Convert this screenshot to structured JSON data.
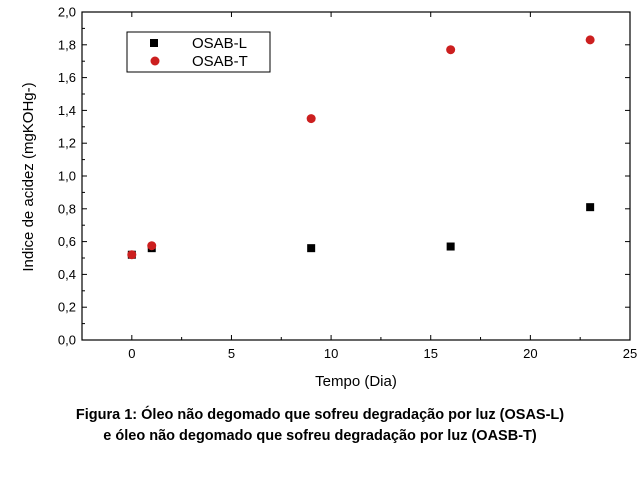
{
  "chart_data": {
    "type": "scatter",
    "xlabel": "Tempo (Dia)",
    "ylabel": "Indice de acidez (mgKOHg-)",
    "xlim": [
      -2.5,
      25
    ],
    "ylim": [
      0,
      2.0
    ],
    "x_ticks": [
      "0",
      "5",
      "10",
      "15",
      "20",
      "25"
    ],
    "y_ticks": [
      "0,0",
      "0,2",
      "0,4",
      "0,6",
      "0,8",
      "1,0",
      "1,2",
      "1,4",
      "1,6",
      "1,8",
      "2,0"
    ],
    "legend_position": "top-left",
    "grid": false,
    "series": [
      {
        "name": "OSAB-L",
        "marker": "square",
        "color": "#000000",
        "points": [
          [
            0,
            0.52
          ],
          [
            1,
            0.56
          ],
          [
            9,
            0.56
          ],
          [
            16,
            0.57
          ],
          [
            23,
            0.81
          ]
        ]
      },
      {
        "name": "OSAB-T",
        "marker": "circle",
        "color": "#cc1f1f",
        "points": [
          [
            0,
            0.52
          ],
          [
            1,
            0.575
          ],
          [
            9,
            1.35
          ],
          [
            16,
            1.77
          ],
          [
            23,
            1.83
          ]
        ]
      }
    ]
  },
  "caption": {
    "line1": "Figura 1: Óleo não degomado que sofreu degradação por luz (OSAS-L)",
    "line2": "e óleo não degomado que sofreu degradação por luz (OASB-T)"
  }
}
